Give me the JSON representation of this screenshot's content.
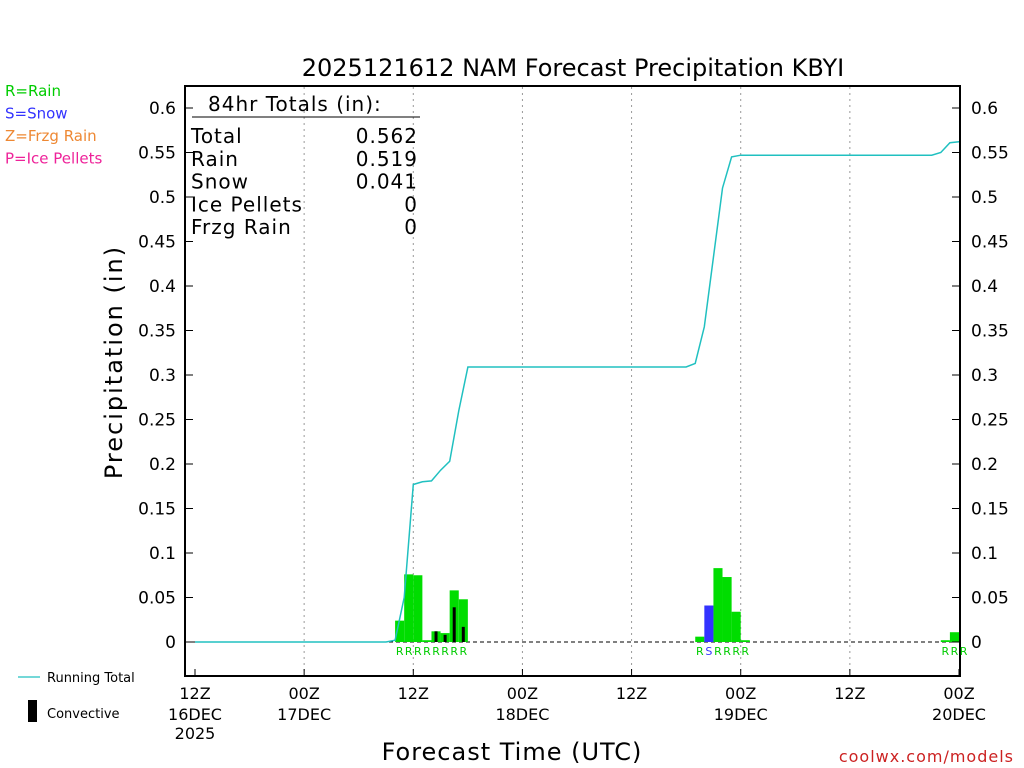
{
  "chart_data": {
    "type": "bar",
    "title": "2025121612 NAM Forecast Precipitation KBYI",
    "xlabel": "Forecast Time (UTC)",
    "ylabel": "Precipitation (in)",
    "ylim": [
      -0.04,
      0.625
    ],
    "xlim_hours": [
      0,
      84
    ],
    "y_ticks": [
      0,
      0.05,
      0.1,
      0.15,
      0.2,
      0.25,
      0.3,
      0.35,
      0.4,
      0.45,
      0.5,
      0.55,
      0.6
    ],
    "y_tick_labels": [
      "0",
      "0.05",
      "0.1",
      "0.15",
      "0.2",
      "0.25",
      "0.3",
      "0.35",
      "0.4",
      "0.45",
      "0.5",
      "0.55",
      "0.6"
    ],
    "x_ticks": [
      {
        "hour": 0,
        "top": "12Z",
        "date": "16DEC",
        "year": "2025"
      },
      {
        "hour": 12,
        "top": "00Z",
        "date": "17DEC",
        "year": ""
      },
      {
        "hour": 24,
        "top": "12Z",
        "date": "",
        "year": ""
      },
      {
        "hour": 36,
        "top": "00Z",
        "date": "18DEC",
        "year": ""
      },
      {
        "hour": 48,
        "top": "12Z",
        "date": "",
        "year": ""
      },
      {
        "hour": 60,
        "top": "00Z",
        "date": "19DEC",
        "year": ""
      },
      {
        "hour": 72,
        "top": "12Z",
        "date": "",
        "year": ""
      },
      {
        "hour": 84,
        "top": "00Z",
        "date": "20DEC",
        "year": ""
      }
    ],
    "bar_width_hours": 1,
    "series": [
      {
        "name": "Rain",
        "color": "#00dd00",
        "points": [
          [
            22.5,
            0.024
          ],
          [
            23.5,
            0.076
          ],
          [
            24.5,
            0.075
          ],
          [
            25.5,
            0.002
          ],
          [
            26.5,
            0.012
          ],
          [
            27.5,
            0.01
          ],
          [
            28.5,
            0.058
          ],
          [
            29.5,
            0.048
          ],
          [
            55.5,
            0.006
          ],
          [
            57.5,
            0.083
          ],
          [
            58.5,
            0.073
          ],
          [
            59.5,
            0.034
          ],
          [
            60.5,
            0.002
          ],
          [
            82.5,
            0.002
          ],
          [
            83.5,
            0.011
          ]
        ]
      },
      {
        "name": "Snow",
        "color": "#3333ff",
        "points": [
          [
            56.5,
            0.041
          ]
        ]
      },
      {
        "name": "Convective",
        "color": "#000000",
        "points": [
          [
            26.5,
            0.012
          ],
          [
            27.5,
            0.008
          ],
          [
            28.5,
            0.039
          ],
          [
            29.5,
            0.017
          ]
        ]
      }
    ],
    "running_total": {
      "name": "Running Total",
      "color": "#20c0c0",
      "points": [
        [
          0,
          0
        ],
        [
          21,
          0
        ],
        [
          22,
          0.002
        ],
        [
          23,
          0.05
        ],
        [
          24,
          0.177
        ],
        [
          25,
          0.18
        ],
        [
          26,
          0.181
        ],
        [
          27,
          0.193
        ],
        [
          28,
          0.203
        ],
        [
          29,
          0.26
        ],
        [
          30,
          0.309
        ],
        [
          54,
          0.309
        ],
        [
          55,
          0.313
        ],
        [
          56,
          0.354
        ],
        [
          57,
          0.432
        ],
        [
          58,
          0.51
        ],
        [
          59,
          0.545
        ],
        [
          60,
          0.547
        ],
        [
          81,
          0.547
        ],
        [
          82,
          0.55
        ],
        [
          83,
          0.561
        ],
        [
          84,
          0.562
        ]
      ]
    },
    "ptype_labels": [
      {
        "hour": 22.5,
        "text": "R",
        "type": "rain"
      },
      {
        "hour": 23.5,
        "text": "R",
        "type": "rain"
      },
      {
        "hour": 24.5,
        "text": "R",
        "type": "rain"
      },
      {
        "hour": 25.5,
        "text": "R",
        "type": "rain"
      },
      {
        "hour": 26.5,
        "text": "R",
        "type": "rain"
      },
      {
        "hour": 27.5,
        "text": "R",
        "type": "rain"
      },
      {
        "hour": 28.5,
        "text": "R",
        "type": "rain"
      },
      {
        "hour": 29.5,
        "text": "R",
        "type": "rain"
      },
      {
        "hour": 55.5,
        "text": "R",
        "type": "rain"
      },
      {
        "hour": 56.5,
        "text": "S",
        "type": "snow"
      },
      {
        "hour": 57.5,
        "text": "R",
        "type": "rain"
      },
      {
        "hour": 58.5,
        "text": "R",
        "type": "rain"
      },
      {
        "hour": 59.5,
        "text": "R",
        "type": "rain"
      },
      {
        "hour": 60.5,
        "text": "R",
        "type": "rain"
      },
      {
        "hour": 82.5,
        "text": "R",
        "type": "rain"
      },
      {
        "hour": 83.5,
        "text": "R",
        "type": "rain"
      },
      {
        "hour": 84.5,
        "text": "R",
        "type": "rain"
      }
    ],
    "ptype_legend": [
      {
        "text": "R=Rain",
        "color": "#00cc00"
      },
      {
        "text": "S=Snow",
        "color": "#3333ff"
      },
      {
        "text": "Z=Frzg Rain",
        "color": "#ee8833"
      },
      {
        "text": "P=Ice Pellets",
        "color": "#ee2299"
      }
    ],
    "totals_box": {
      "header": "84hr Totals (in):",
      "rows": [
        {
          "label": "Total",
          "value": "0.562"
        },
        {
          "label": "Rain",
          "value": "0.519"
        },
        {
          "label": "Snow",
          "value": "0.041"
        },
        {
          "label": "Ice Pellets",
          "value": "0"
        },
        {
          "label": "Frzg Rain",
          "value": "0"
        }
      ]
    },
    "legend": {
      "running_total_label": "Running Total",
      "convective_label": "Convective"
    },
    "credit": "coolwx.com/models"
  }
}
